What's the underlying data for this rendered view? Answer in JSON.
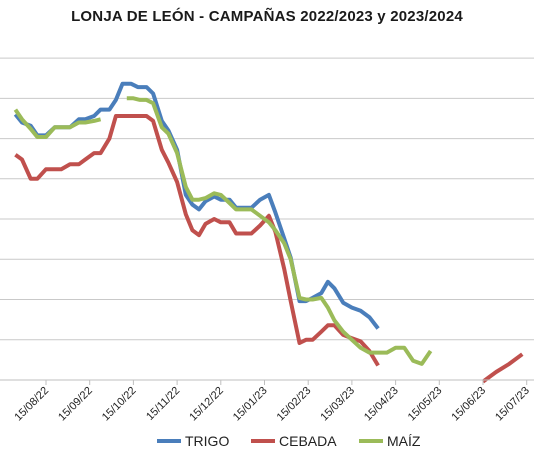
{
  "chart_data": {
    "type": "line",
    "title": "LONJA DE LEÓN - CAMPAÑAS 2022/2023 y 2023/2024",
    "xlabel": "",
    "ylabel": "",
    "x_tick_labels": [
      "15/08/22",
      "15/09/22",
      "15/10/22",
      "15/11/22",
      "15/12/22",
      "15/01/23",
      "15/02/23",
      "15/03/23",
      "15/04/23",
      "15/05/23",
      "15/06/23",
      "15/07/23"
    ],
    "ylim": [
      150,
      360
    ],
    "grid": true,
    "legend_position": "bottom",
    "series": [
      {
        "name": "TRIGO",
        "color": "#4a7ebb",
        "points": [
          [
            -0.7,
            315
          ],
          [
            -0.55,
            310
          ],
          [
            -0.35,
            308
          ],
          [
            -0.2,
            302
          ],
          [
            0.0,
            302
          ],
          [
            0.2,
            307
          ],
          [
            0.35,
            307
          ],
          [
            0.55,
            307
          ],
          [
            0.75,
            312
          ],
          [
            0.9,
            312
          ],
          [
            1.1,
            314
          ],
          [
            1.25,
            318
          ],
          [
            1.45,
            318
          ],
          [
            1.6,
            324
          ],
          [
            1.75,
            334
          ],
          [
            1.95,
            334
          ],
          [
            2.1,
            332
          ],
          [
            2.3,
            332
          ],
          [
            2.45,
            328
          ],
          [
            2.65,
            311
          ],
          [
            2.8,
            305
          ],
          [
            3.0,
            293
          ],
          [
            3.2,
            265
          ],
          [
            3.35,
            259
          ],
          [
            3.5,
            256
          ],
          [
            3.65,
            261
          ],
          [
            3.85,
            264
          ],
          [
            4.0,
            262
          ],
          [
            4.2,
            262
          ],
          [
            4.35,
            257
          ],
          [
            4.55,
            257
          ],
          [
            4.7,
            257
          ],
          [
            4.9,
            262
          ],
          [
            5.1,
            265
          ],
          [
            5.25,
            254
          ],
          [
            5.45,
            238
          ],
          [
            5.6,
            226
          ],
          [
            5.8,
            199
          ],
          [
            5.95,
            199
          ],
          [
            6.1,
            201
          ],
          [
            6.3,
            204
          ],
          [
            6.45,
            211
          ],
          [
            6.6,
            207
          ],
          [
            6.8,
            198
          ],
          [
            7.0,
            195
          ],
          [
            7.2,
            193
          ],
          [
            7.4,
            189
          ],
          [
            7.6,
            182
          ]
        ]
      },
      {
        "name": "CEBADA",
        "color": "#c0504d",
        "points": [
          [
            -0.7,
            290
          ],
          [
            -0.55,
            287
          ],
          [
            -0.35,
            275
          ],
          [
            -0.2,
            275
          ],
          [
            0.0,
            281
          ],
          [
            0.2,
            281
          ],
          [
            0.35,
            281
          ],
          [
            0.55,
            284
          ],
          [
            0.75,
            284
          ],
          [
            0.9,
            287
          ],
          [
            1.1,
            291
          ],
          [
            1.25,
            291
          ],
          [
            1.45,
            300
          ],
          [
            1.6,
            314
          ],
          [
            1.75,
            314
          ],
          [
            1.95,
            314
          ],
          [
            2.1,
            314
          ],
          [
            2.3,
            314
          ],
          [
            2.45,
            311
          ],
          [
            2.65,
            293
          ],
          [
            2.8,
            285
          ],
          [
            3.0,
            273
          ],
          [
            3.2,
            253
          ],
          [
            3.35,
            243
          ],
          [
            3.5,
            240
          ],
          [
            3.65,
            247
          ],
          [
            3.85,
            250
          ],
          [
            4.0,
            248
          ],
          [
            4.2,
            248
          ],
          [
            4.35,
            241
          ],
          [
            4.55,
            241
          ],
          [
            4.7,
            241
          ],
          [
            4.9,
            246
          ],
          [
            5.1,
            252
          ],
          [
            5.25,
            242
          ],
          [
            5.45,
            219
          ],
          [
            5.6,
            199
          ],
          [
            5.8,
            173
          ],
          [
            5.95,
            175
          ],
          [
            6.1,
            175
          ],
          [
            6.3,
            180
          ],
          [
            6.45,
            184
          ],
          [
            6.6,
            184
          ],
          [
            6.8,
            178
          ],
          [
            7.0,
            176
          ],
          [
            7.2,
            174
          ],
          [
            7.4,
            168
          ],
          [
            7.6,
            159
          ],
          [
            null,
            null
          ],
          [
            10.0,
            149
          ],
          [
            10.3,
            155
          ],
          [
            10.6,
            160
          ],
          [
            10.9,
            166
          ]
        ]
      },
      {
        "name": "MAÍZ",
        "color": "#9bbb59",
        "points": [
          [
            -0.7,
            318
          ],
          [
            -0.55,
            312
          ],
          [
            -0.35,
            306
          ],
          [
            -0.2,
            301
          ],
          [
            0.0,
            301
          ],
          [
            0.2,
            307
          ],
          [
            0.35,
            307
          ],
          [
            0.55,
            307
          ],
          [
            0.75,
            310
          ],
          [
            0.9,
            310
          ],
          [
            1.1,
            311
          ],
          [
            1.25,
            312
          ],
          [
            null,
            null
          ],
          [
            1.85,
            325
          ],
          [
            2.0,
            325
          ],
          [
            2.15,
            324
          ],
          [
            2.3,
            324
          ],
          [
            2.45,
            322
          ],
          [
            2.65,
            307
          ],
          [
            2.8,
            303
          ],
          [
            3.0,
            291
          ],
          [
            3.2,
            270
          ],
          [
            3.35,
            262
          ],
          [
            3.5,
            262
          ],
          [
            3.65,
            263
          ],
          [
            3.85,
            266
          ],
          [
            4.0,
            265
          ],
          [
            4.2,
            260
          ],
          [
            4.35,
            256
          ],
          [
            4.55,
            256
          ],
          [
            4.7,
            256
          ],
          [
            4.9,
            252
          ],
          [
            5.1,
            248
          ],
          [
            5.25,
            243
          ],
          [
            5.45,
            235
          ],
          [
            5.6,
            225
          ],
          [
            5.8,
            201
          ],
          [
            5.95,
            200
          ],
          [
            6.1,
            200
          ],
          [
            6.3,
            201
          ],
          [
            6.45,
            195
          ],
          [
            6.6,
            187
          ],
          [
            6.8,
            180
          ],
          [
            7.0,
            175
          ],
          [
            7.2,
            170
          ],
          [
            7.4,
            167
          ],
          [
            7.6,
            167
          ],
          [
            7.8,
            167
          ],
          [
            8.0,
            170
          ],
          [
            8.2,
            170
          ],
          [
            8.4,
            162
          ],
          [
            8.6,
            160
          ],
          [
            8.8,
            168
          ]
        ]
      }
    ]
  }
}
